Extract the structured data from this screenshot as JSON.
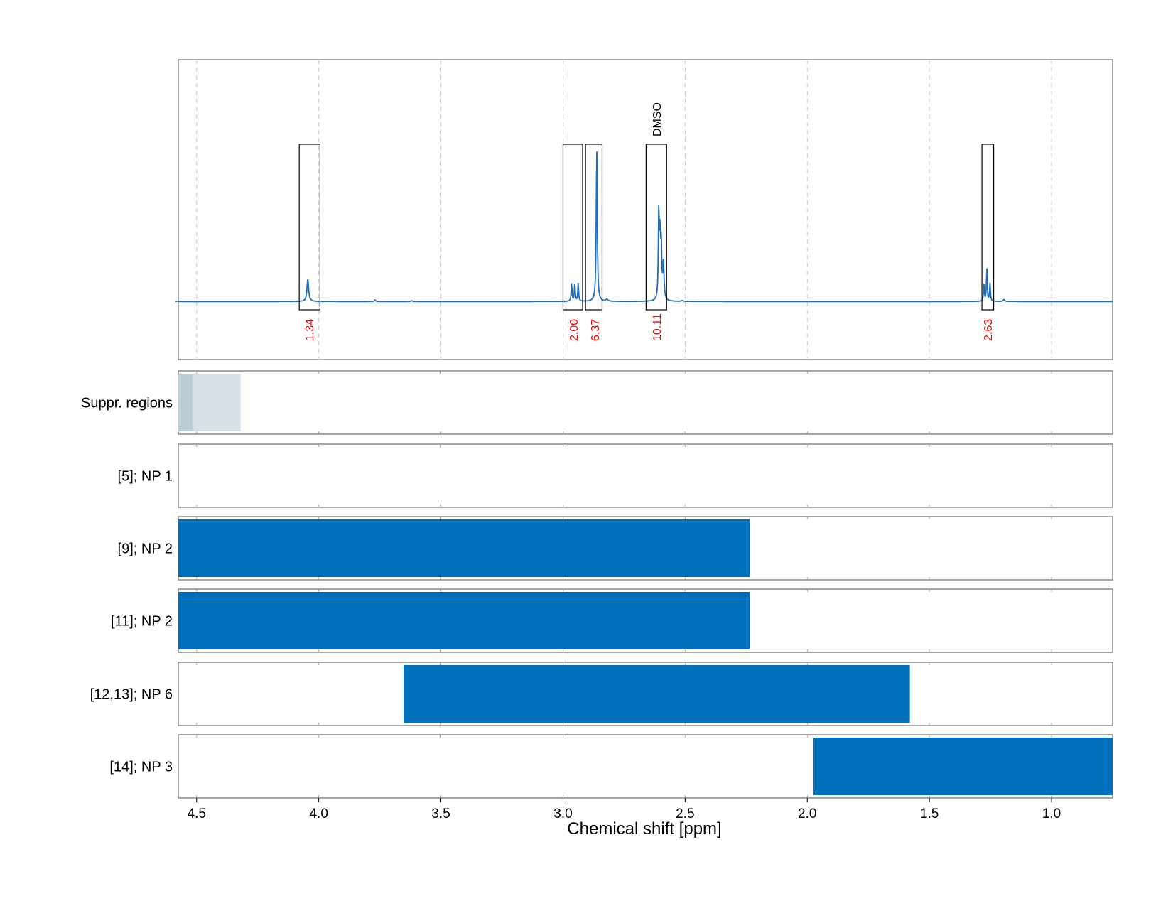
{
  "chart_data": {
    "type": "nmr_spectrum_with_range_tracks",
    "xlabel": "Chemical shift [ppm]",
    "xlim": [
      4.575,
      0.75
    ],
    "x_ticks": [
      4.5,
      4.0,
      3.5,
      3.0,
      2.5,
      2.0,
      1.5,
      1.0
    ],
    "x_tick_labels": [
      "4.5",
      "4.0",
      "3.5",
      "3.0",
      "2.5",
      "2.0",
      "1.5",
      "1.0"
    ],
    "grid": "dashed vertical",
    "spectrum": {
      "color": "#1f6fbd",
      "baseline": 0.0,
      "ylim": [
        -0.36,
        1.5
      ],
      "peaks": [
        {
          "ppm": 4.045,
          "height": 0.14,
          "width": 0.004
        },
        {
          "ppm": 3.77,
          "height": 0.01,
          "width": 0.003
        },
        {
          "ppm": 3.62,
          "height": 0.006,
          "width": 0.003
        },
        {
          "ppm": 2.965,
          "height": 0.11,
          "width": 0.002
        },
        {
          "ppm": 2.952,
          "height": 0.11,
          "width": 0.002
        },
        {
          "ppm": 2.938,
          "height": 0.11,
          "width": 0.002
        },
        {
          "ppm": 2.862,
          "height": 0.94,
          "width": 0.0025
        },
        {
          "ppm": 2.82,
          "height": 0.012,
          "width": 0.005
        },
        {
          "ppm": 2.608,
          "height": 0.52,
          "width": 0.0022
        },
        {
          "ppm": 2.603,
          "height": 0.36,
          "width": 0.0025
        },
        {
          "ppm": 2.598,
          "height": 0.32,
          "width": 0.0025
        },
        {
          "ppm": 2.589,
          "height": 0.22,
          "width": 0.003
        },
        {
          "ppm": 2.512,
          "height": 0.006,
          "width": 0.004
        },
        {
          "ppm": 1.277,
          "height": 0.11,
          "width": 0.002
        },
        {
          "ppm": 1.265,
          "height": 0.2,
          "width": 0.002
        },
        {
          "ppm": 1.252,
          "height": 0.11,
          "width": 0.002
        },
        {
          "ppm": 1.195,
          "height": 0.012,
          "width": 0.004
        }
      ]
    },
    "integration_regions": [
      {
        "from": 4.08,
        "to": 3.995,
        "integral": "1.34",
        "label_ppm": 4.04
      },
      {
        "from": 3.0,
        "to": 2.92,
        "integral": "2.00",
        "label_ppm": 2.958
      },
      {
        "from": 2.908,
        "to": 2.84,
        "integral": "6.37",
        "label_ppm": 2.87
      },
      {
        "from": 2.66,
        "to": 2.576,
        "integral": "10.11",
        "label_ppm": 2.618,
        "annotation": "DMSO"
      },
      {
        "from": 1.285,
        "to": 1.237,
        "integral": "2.63",
        "label_ppm": 1.262
      }
    ],
    "tracks": [
      {
        "label": "Suppr. regions",
        "type": "suppressed",
        "ranges": [
          {
            "from": 4.575,
            "to": 4.515,
            "color": "#bcccd4"
          },
          {
            "from": 4.515,
            "to": 4.32,
            "color": "#d7e0e7"
          }
        ]
      },
      {
        "label": "[5]; NP 1",
        "type": "range",
        "ranges": []
      },
      {
        "label": "[9]; NP 2",
        "type": "range",
        "ranges": [
          {
            "from": 4.575,
            "to": 2.235,
            "color": "#0070bb"
          }
        ]
      },
      {
        "label": "[11]; NP 2",
        "type": "range",
        "ranges": [
          {
            "from": 4.575,
            "to": 2.235,
            "color": "#0070bb"
          }
        ]
      },
      {
        "label": "[12,13]; NP 6",
        "type": "range",
        "ranges": [
          {
            "from": 3.653,
            "to": 1.58,
            "color": "#0070bb"
          }
        ]
      },
      {
        "label": "[14]; NP 3",
        "type": "range",
        "ranges": [
          {
            "from": 1.975,
            "to": 0.75,
            "color": "#0070bb"
          }
        ]
      }
    ]
  }
}
